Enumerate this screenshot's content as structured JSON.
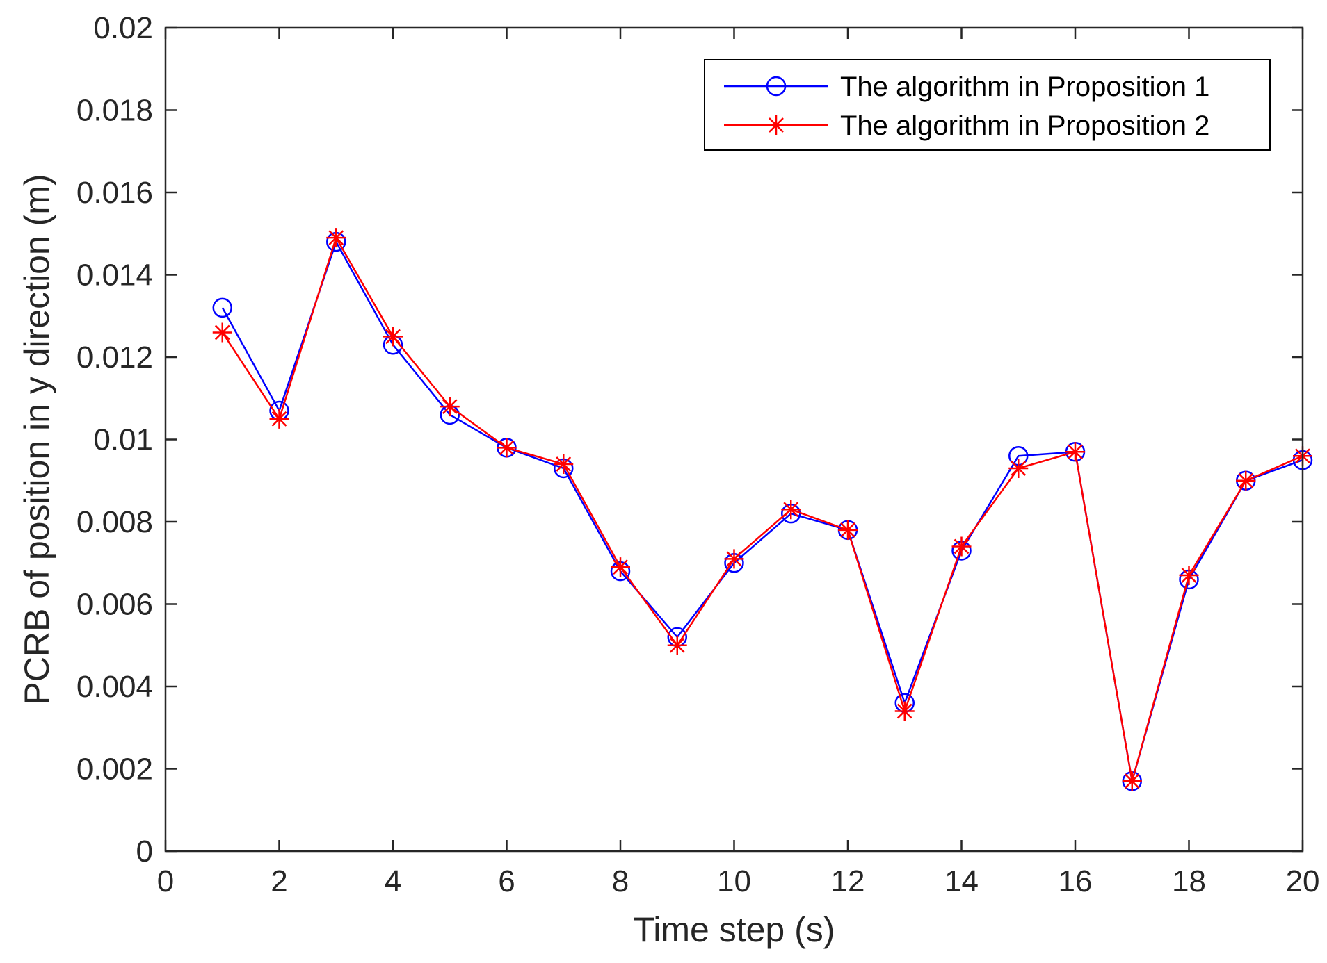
{
  "chart_data": {
    "type": "line",
    "title": "",
    "xlabel": "Time step (s)",
    "ylabel": "PCRB of position in y direction (m)",
    "xlim": [
      0,
      20
    ],
    "ylim": [
      0,
      0.02
    ],
    "grid": false,
    "legend_position": "top-right",
    "x_ticks": [
      0,
      2,
      4,
      6,
      8,
      10,
      12,
      14,
      16,
      18,
      20
    ],
    "x_tick_labels": [
      "0",
      "2",
      "4",
      "6",
      "8",
      "10",
      "12",
      "14",
      "16",
      "18",
      "20"
    ],
    "y_ticks": [
      0,
      0.002,
      0.004,
      0.006,
      0.008,
      0.01,
      0.012,
      0.014,
      0.016,
      0.018,
      0.02
    ],
    "y_tick_labels": [
      "0",
      "0.002",
      "0.004",
      "0.006",
      "0.008",
      "0.01",
      "0.012",
      "0.014",
      "0.016",
      "0.018",
      "0.02"
    ],
    "x": [
      1,
      2,
      3,
      4,
      5,
      6,
      7,
      8,
      9,
      10,
      11,
      12,
      13,
      14,
      15,
      16,
      17,
      18,
      19,
      20
    ],
    "series": [
      {
        "name": "The algorithm in Proposition 1",
        "color": "#0000ff",
        "marker": "circle",
        "values": [
          0.0132,
          0.0107,
          0.0148,
          0.0123,
          0.0106,
          0.0098,
          0.0093,
          0.0068,
          0.0052,
          0.007,
          0.0082,
          0.0078,
          0.0036,
          0.0073,
          0.0096,
          0.0097,
          0.0017,
          0.0066,
          0.009,
          0.0095
        ]
      },
      {
        "name": "The algorithm in Proposition 2",
        "color": "#ff0000",
        "marker": "star",
        "values": [
          0.0126,
          0.0105,
          0.0149,
          0.0125,
          0.0108,
          0.0098,
          0.0094,
          0.0069,
          0.005,
          0.0071,
          0.0083,
          0.0078,
          0.0034,
          0.0074,
          0.0093,
          0.0097,
          0.0017,
          0.0067,
          0.009,
          0.0096
        ]
      }
    ]
  }
}
